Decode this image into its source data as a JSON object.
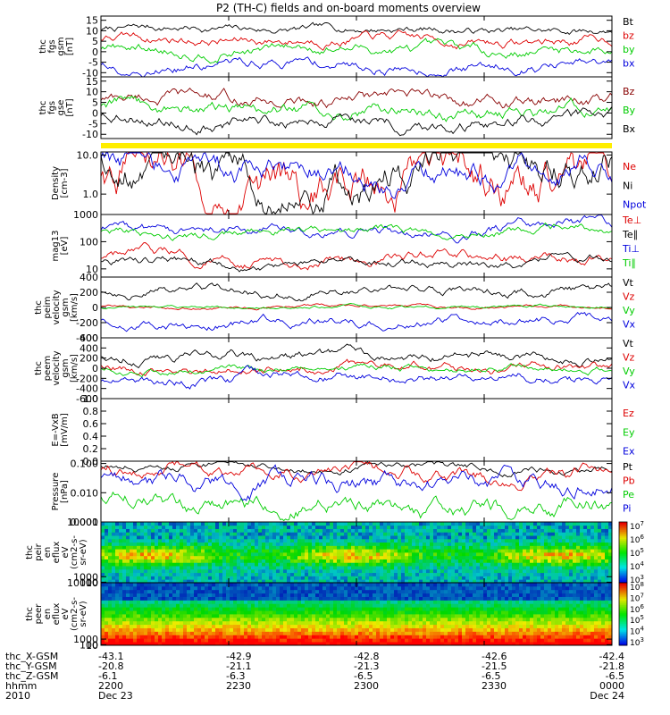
{
  "title": "P2 (TH-C) fields and on-board moments overview",
  "chart_data": [
    {
      "type": "line",
      "ylabel": [
        "thc",
        "fgs",
        "gsm",
        "[nT]"
      ],
      "ylim": [
        -12,
        17
      ],
      "yticks": [
        15,
        10,
        5,
        0,
        -5,
        -10
      ],
      "series": [
        {
          "name": "Bt",
          "color": "#000000",
          "base": 10.5,
          "amp": 2.2
        },
        {
          "name": "bz",
          "color": "#dd0000",
          "base": 5.5,
          "amp": 2.8
        },
        {
          "name": "by",
          "color": "#00cc00",
          "base": 1.0,
          "amp": 3.0
        },
        {
          "name": "bx",
          "color": "#0000dd",
          "base": -6.5,
          "amp": 3.0
        }
      ]
    },
    {
      "type": "line",
      "ylabel": [
        "thc",
        "fgs",
        "gse",
        "[nT]"
      ],
      "ylim": [
        -12,
        17
      ],
      "yticks": [
        15,
        10,
        5,
        0,
        -5,
        -10
      ],
      "series": [
        {
          "name": "Bz",
          "color": "#880000",
          "base": 6.0,
          "amp": 3.5
        },
        {
          "name": "By",
          "color": "#00cc00",
          "base": 1.5,
          "amp": 3.8
        },
        {
          "name": "Bx",
          "color": "#000000",
          "base": -3.0,
          "amp": 3.5
        }
      ]
    },
    {
      "type": "line",
      "log": true,
      "ylabel": [
        "Density",
        "[cm-3]"
      ],
      "ylim": [
        0.3,
        12
      ],
      "yticks": [
        10.0,
        1.0
      ],
      "ytick_labels": [
        "10.0",
        "1.0"
      ],
      "series": [
        {
          "name": "Ne",
          "color": "#dd0000",
          "base": 2.5,
          "amp": 0.35
        },
        {
          "name": "Ni",
          "color": "#000000",
          "base": 3.0,
          "amp": 0.3
        },
        {
          "name": "Npot",
          "color": "#0000dd",
          "base": 4.0,
          "amp": 0.2
        }
      ]
    },
    {
      "type": "line",
      "log": true,
      "ylabel": [
        "mag13",
        "[eV]"
      ],
      "ylim": [
        5,
        1000
      ],
      "yticks": [
        1000,
        100,
        10
      ],
      "ytick_labels": [
        "1000",
        "100",
        "10"
      ],
      "series": [
        {
          "name": "Te⊥",
          "color": "#dd0000",
          "base": 25,
          "amp": 0.12
        },
        {
          "name": "Te∥",
          "color": "#000000",
          "base": 18,
          "amp": 0.1
        },
        {
          "name": "Ti⊥",
          "color": "#0000dd",
          "base": 280,
          "amp": 0.12
        },
        {
          "name": "Ti∥",
          "color": "#00cc00",
          "base": 230,
          "amp": 0.1
        }
      ]
    },
    {
      "type": "line",
      "ylabel": [
        "thc",
        "peim",
        "velocity",
        "gsm",
        "[km/s]"
      ],
      "ylim": [
        -400,
        400
      ],
      "yticks": [
        400,
        200,
        0,
        -200,
        -400
      ],
      "series": [
        {
          "name": "Vt",
          "color": "#000000",
          "base": 220,
          "amp": 70
        },
        {
          "name": "Vz",
          "color": "#dd0000",
          "base": 10,
          "amp": 25
        },
        {
          "name": "Vy",
          "color": "#00cc00",
          "base": 0,
          "amp": 25
        },
        {
          "name": "Vx",
          "color": "#0000dd",
          "base": -180,
          "amp": 70
        }
      ]
    },
    {
      "type": "line",
      "ylabel": [
        "thc",
        "peem",
        "velocity",
        "gsm",
        "[km/s]"
      ],
      "ylim": [
        -600,
        600
      ],
      "yticks": [
        600,
        400,
        200,
        0,
        -200,
        -400,
        -600
      ],
      "series": [
        {
          "name": "Vt",
          "color": "#000000",
          "base": 260,
          "amp": 120
        },
        {
          "name": "Vz",
          "color": "#dd0000",
          "base": 20,
          "amp": 110
        },
        {
          "name": "Vy",
          "color": "#00cc00",
          "base": 0,
          "amp": 80
        },
        {
          "name": "Vx",
          "color": "#0000dd",
          "base": -200,
          "amp": 120
        }
      ]
    },
    {
      "type": "line",
      "ylabel": [
        "E=-VxB",
        "[mV/m]"
      ],
      "ylim": [
        0.0,
        1.0
      ],
      "yticks": [
        1.0,
        0.8,
        0.6,
        0.4,
        0.2,
        0.0
      ],
      "ytick_labels": [
        "1.0",
        "0.8",
        "0.6",
        "0.4",
        "0.2",
        "0.0"
      ],
      "series": [
        {
          "name": "Ez",
          "color": "#dd0000",
          "empty": true
        },
        {
          "name": "Ey",
          "color": "#00cc00",
          "empty": true
        },
        {
          "name": "Ex",
          "color": "#0000dd",
          "empty": true
        }
      ]
    },
    {
      "type": "line",
      "log": true,
      "ylabel": [
        "Pressure",
        "[nPa]"
      ],
      "ylim": [
        0.001,
        0.12
      ],
      "yticks": [
        0.1,
        0.01,
        0.001
      ],
      "ytick_labels": [
        "0.100",
        "0.010",
        "0.001"
      ],
      "series": [
        {
          "name": "Pt",
          "color": "#000000",
          "base": 0.075,
          "amp": 0.08
        },
        {
          "name": "Pb",
          "color": "#dd0000",
          "base": 0.045,
          "amp": 0.14
        },
        {
          "name": "Pe",
          "color": "#00cc00",
          "base": 0.0035,
          "amp": 0.18
        },
        {
          "name": "Pi",
          "color": "#0000dd",
          "base": 0.022,
          "amp": 0.18
        }
      ]
    },
    {
      "type": "heatmap",
      "ylabel": [
        "thc",
        "peir",
        "en",
        "eflux",
        "eV",
        "(cm2-s-",
        "sr-eV)"
      ],
      "ylim": [
        10,
        10000
      ],
      "yticks": [
        10000,
        1000,
        100,
        10
      ],
      "cbar": [
        "10^3",
        "10^4",
        "10^5",
        "10^6",
        "10^7"
      ]
    },
    {
      "type": "heatmap",
      "ylabel": [
        "thc",
        "peer",
        "en",
        "eflux",
        "eV",
        "(cm2-s-",
        "sr-eV)"
      ],
      "ylim": [
        10,
        10000
      ],
      "yticks": [
        10000,
        1000,
        100,
        10
      ],
      "cbar": [
        "10^3",
        "10^4",
        "10^5",
        "10^6",
        "10^7",
        "10^8"
      ]
    }
  ],
  "footer": {
    "rows": [
      {
        "label": "thc_X-GSM",
        "values": [
          "-43.1",
          "-42.9",
          "-42.8",
          "-42.6",
          "-42.4"
        ]
      },
      {
        "label": "thc_Y-GSM",
        "values": [
          "-20.8",
          "-21.1",
          "-21.3",
          "-21.5",
          "-21.8"
        ]
      },
      {
        "label": "thc_Z-GSM",
        "values": [
          "-6.1",
          "-6.3",
          "-6.5",
          "-6.5",
          "-6.5"
        ]
      },
      {
        "label": "hhmm",
        "values": [
          "2200",
          "2230",
          "2300",
          "2330",
          "0000"
        ]
      },
      {
        "label": "2010",
        "values": [
          "Dec 23",
          "",
          "",
          "",
          "Dec 24"
        ]
      }
    ]
  }
}
